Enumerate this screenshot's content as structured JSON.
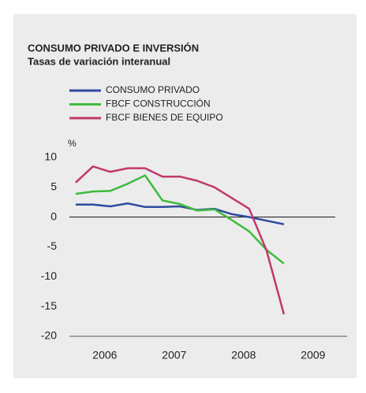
{
  "chart_data": {
    "type": "line",
    "title": "CONSUMO PRIVADO E INVERSIÓN",
    "subtitle": "Tasas de variación interanual",
    "y_unit": "%",
    "x": [
      2006,
      2006.25,
      2006.5,
      2006.75,
      2007,
      2007.25,
      2007.5,
      2007.75,
      2008,
      2008.25,
      2008.5,
      2008.75,
      2009
    ],
    "series": [
      {
        "name": "CONSUMO PRIVADO",
        "color": "#2e4a9e",
        "values": [
          2.1,
          2.1,
          1.8,
          2.3,
          1.7,
          1.7,
          1.8,
          1.2,
          1.4,
          0.5,
          0,
          -0.6,
          -1.2
        ]
      },
      {
        "name": "FBCF CONSTRUCCIÓN",
        "color": "#3dbb3d",
        "values": [
          3.9,
          4.3,
          4.4,
          5.6,
          7,
          2.8,
          2.2,
          1.1,
          1.3,
          -0.5,
          -2.4,
          -5.5,
          -7.8
        ]
      },
      {
        "name": "FBCF BIENES DE EQUIPO",
        "color": "#c0396b",
        "values": [
          5.8,
          8.5,
          7.6,
          8.2,
          8.2,
          6.8,
          6.8,
          6.1,
          5.0,
          3.2,
          1.4,
          -5.6,
          -16.3
        ]
      }
    ],
    "xlim": [
      2005.91,
      2009.91
    ],
    "xticks": [
      {
        "value": 2006.42,
        "label": "2006"
      },
      {
        "value": 2007.42,
        "label": "2007"
      },
      {
        "value": 2008.42,
        "label": "2008"
      },
      {
        "value": 2009.42,
        "label": "2009"
      }
    ],
    "ylim": [
      -20,
      10
    ],
    "yticks": [
      -20,
      -15,
      -10,
      -5,
      0,
      5,
      10
    ]
  }
}
